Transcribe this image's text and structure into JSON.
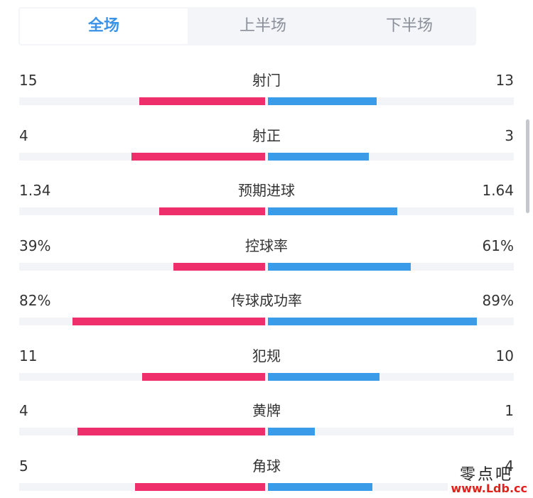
{
  "tabs": [
    {
      "label": "全场",
      "active": true
    },
    {
      "label": "上半场",
      "active": false
    },
    {
      "label": "下半场",
      "active": false
    }
  ],
  "colors": {
    "home": "#ef2f6b",
    "away": "#3a9be8",
    "active_tab": "#3a93e6"
  },
  "stats": [
    {
      "label": "射门",
      "home": "15",
      "away": "13",
      "home_share": 0.535,
      "away_share": 0.465
    },
    {
      "label": "射正",
      "home": "4",
      "away": "3",
      "home_share": 0.571,
      "away_share": 0.429
    },
    {
      "label": "预期进球",
      "home": "1.34",
      "away": "1.64",
      "home_share": 0.45,
      "away_share": 0.55
    },
    {
      "label": "控球率",
      "home": "39%",
      "away": "61%",
      "home_share": 0.39,
      "away_share": 0.61
    },
    {
      "label": "传球成功率",
      "home": "82%",
      "away": "89%",
      "home_share": 0.82,
      "away_share": 0.89
    },
    {
      "label": "犯规",
      "home": "11",
      "away": "10",
      "home_share": 0.524,
      "away_share": 0.476
    },
    {
      "label": "黄牌",
      "home": "4",
      "away": "1",
      "home_share": 0.8,
      "away_share": 0.2
    },
    {
      "label": "角球",
      "home": "5",
      "away": "4",
      "home_share": 0.556,
      "away_share": 0.444
    }
  ],
  "watermark": {
    "text": "零点吧",
    "url": "www.Ldb.cc"
  }
}
